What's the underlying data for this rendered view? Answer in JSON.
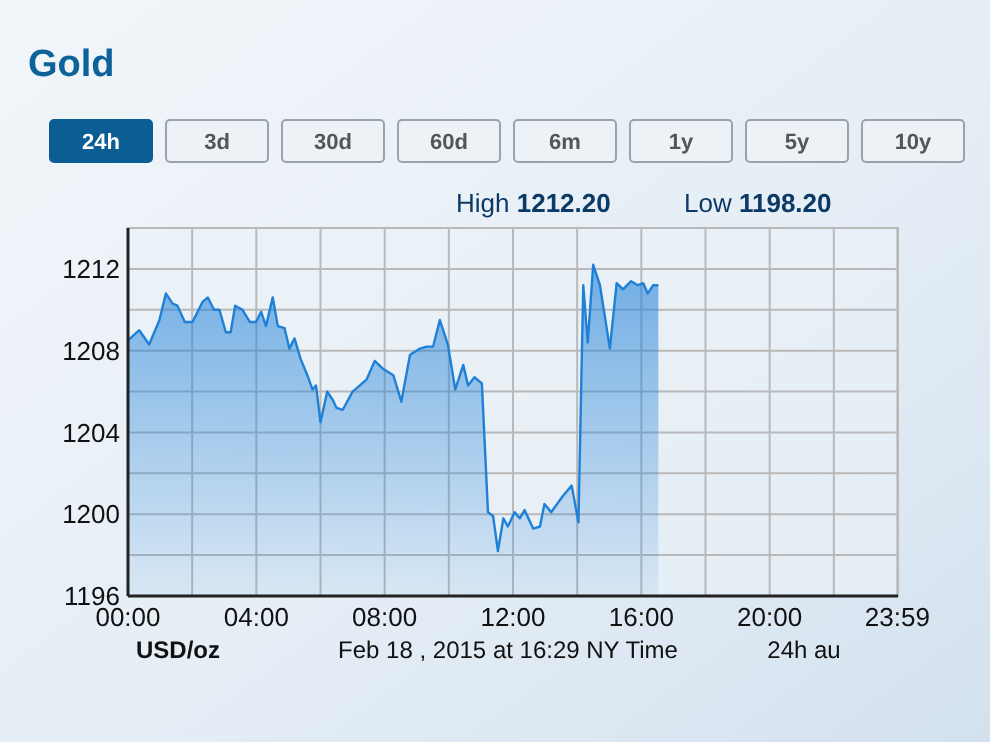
{
  "chart_data": {
    "type": "area",
    "title": "Gold",
    "annotations": [
      "24h",
      "3d",
      "30d",
      "60d",
      "6m",
      "1y",
      "5y",
      "10y",
      "High 1212.20",
      "Low 1198.20",
      "USD/oz",
      "Feb 18 , 2015 at 16:29 NY Time",
      "24h au"
    ],
    "series": [
      {
        "color": "#1f80d8",
        "x": [
          0,
          0.35,
          0.66,
          0.98,
          1.18,
          1.39,
          1.54,
          1.77,
          2.01,
          2.33,
          2.49,
          2.68,
          2.85,
          3.05,
          3.2,
          3.34,
          3.57,
          3.8,
          3.99,
          4.15,
          4.3,
          4.51,
          4.67,
          4.88,
          5.03,
          5.19,
          5.38,
          5.59,
          5.75,
          5.86,
          6.0,
          6.21,
          6.38,
          6.5,
          6.69,
          7.0,
          7.23,
          7.44,
          7.69,
          7.96,
          8.27,
          8.52,
          8.79,
          9.1,
          9.31,
          9.51,
          9.72,
          9.97,
          10.2,
          10.45,
          10.6,
          10.8,
          11.03,
          11.22,
          11.38,
          11.53,
          11.7,
          11.84,
          12.05,
          12.21,
          12.36,
          12.63,
          12.84,
          12.98,
          13.19,
          13.56,
          13.83,
          14.04,
          14.19,
          14.33,
          14.5,
          14.71,
          15.02,
          15.23,
          15.43,
          15.68,
          15.89,
          16.06,
          16.2,
          16.37,
          16.53
        ],
        "values": [
          1208.5,
          1209.0,
          1208.3,
          1209.5,
          1210.8,
          1210.3,
          1210.2,
          1209.4,
          1209.4,
          1210.4,
          1210.6,
          1210.0,
          1210.0,
          1208.9,
          1208.9,
          1210.2,
          1210.0,
          1209.4,
          1209.4,
          1209.9,
          1209.2,
          1210.6,
          1209.2,
          1209.1,
          1208.1,
          1208.6,
          1207.6,
          1206.8,
          1206.1,
          1206.3,
          1204.5,
          1206.0,
          1205.6,
          1205.2,
          1205.1,
          1206.0,
          1206.3,
          1206.6,
          1207.5,
          1207.1,
          1206.8,
          1205.5,
          1207.8,
          1208.1,
          1208.2,
          1208.2,
          1209.5,
          1208.3,
          1206.1,
          1207.3,
          1206.3,
          1206.7,
          1206.4,
          1200.1,
          1199.9,
          1198.2,
          1199.8,
          1199.4,
          1200.1,
          1199.8,
          1200.2,
          1199.3,
          1199.4,
          1200.5,
          1200.1,
          1200.9,
          1201.4,
          1199.6,
          1211.2,
          1208.4,
          1212.2,
          1211.2,
          1208.1,
          1211.3,
          1211.0,
          1211.4,
          1211.2,
          1211.3,
          1210.8,
          1211.2,
          1211.2
        ]
      }
    ],
    "xlim": [
      0,
      24
    ],
    "xticks": [
      {
        "value": 0,
        "label": "00:00"
      },
      {
        "value": 2,
        "label": null
      },
      {
        "value": 4,
        "label": "04:00"
      },
      {
        "value": 6,
        "label": null
      },
      {
        "value": 8,
        "label": "08:00"
      },
      {
        "value": 10,
        "label": null
      },
      {
        "value": 12,
        "label": "12:00"
      },
      {
        "value": 14,
        "label": null
      },
      {
        "value": 16,
        "label": "16:00"
      },
      {
        "value": 18,
        "label": null
      },
      {
        "value": 20,
        "label": "20:00"
      },
      {
        "value": 22,
        "label": null
      },
      {
        "value": 23.98,
        "label": "23:59"
      }
    ],
    "ylim": [
      1196,
      1214
    ],
    "yticks": [
      1196,
      {
        "value": 1198,
        "label": null
      },
      1200,
      {
        "value": 1202,
        "label": null
      },
      1204,
      {
        "value": 1206,
        "label": null
      },
      1208,
      {
        "value": 1210,
        "label": null
      },
      1212
    ],
    "grid": true
  }
}
